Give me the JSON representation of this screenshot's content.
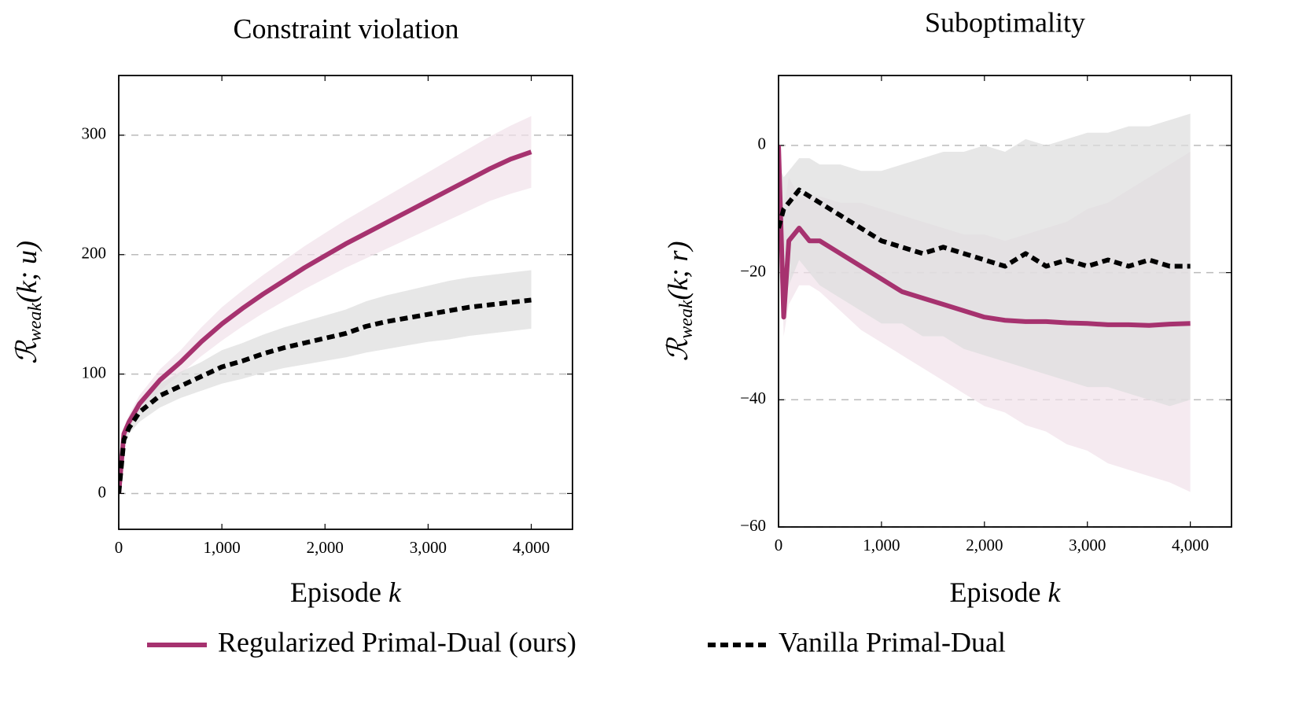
{
  "chart_data": [
    {
      "type": "line",
      "title": "Constraint violation",
      "xlabel": [
        "Episode",
        "k"
      ],
      "ylabel": [
        "ℛ",
        "weak",
        "(k; u)"
      ],
      "x": [
        0,
        50,
        100,
        200,
        300,
        400,
        600,
        800,
        1000,
        1200,
        1400,
        1600,
        1800,
        2000,
        2200,
        2400,
        2600,
        2800,
        3000,
        3200,
        3400,
        3600,
        3800,
        4000
      ],
      "xlim": [
        0,
        4400
      ],
      "ylim": [
        -30,
        350
      ],
      "xticks": [
        0,
        {
          "value": 1000,
          "label": "1,000"
        },
        {
          "value": 2000,
          "label": "2,000"
        },
        {
          "value": 3000,
          "label": "3,000"
        },
        {
          "value": 4000,
          "label": "4,000"
        }
      ],
      "yticks": [
        0,
        100,
        200,
        300
      ],
      "grid": true,
      "series": [
        {
          "name": "Regularized Primal-Dual (ours)",
          "color": "#a6326f",
          "band_color": "#f1e1ea",
          "style": "solid",
          "values": [
            0,
            50,
            60,
            75,
            85,
            95,
            110,
            127,
            142,
            155,
            167,
            178,
            189,
            199,
            209,
            218,
            227,
            236,
            245,
            254,
            263,
            272,
            280,
            286
          ],
          "lower": [
            0,
            45,
            54,
            68,
            77,
            86,
            100,
            115,
            128,
            140,
            151,
            161,
            171,
            180,
            189,
            197,
            205,
            213,
            221,
            229,
            237,
            245,
            251,
            256
          ],
          "upper": [
            0,
            55,
            66,
            82,
            93,
            104,
            120,
            139,
            156,
            170,
            183,
            195,
            207,
            218,
            229,
            239,
            249,
            259,
            269,
            279,
            289,
            299,
            308,
            316
          ]
        },
        {
          "name": "Vanilla Primal-Dual",
          "color": "#000000",
          "band_color": "#dddddd",
          "style": "dashed",
          "values": [
            0,
            45,
            55,
            68,
            75,
            82,
            90,
            98,
            106,
            111,
            117,
            122,
            126,
            130,
            134,
            140,
            144,
            147,
            150,
            153,
            156,
            158,
            160,
            162
          ],
          "lower": [
            0,
            40,
            50,
            60,
            66,
            72,
            80,
            86,
            92,
            96,
            101,
            105,
            108,
            111,
            114,
            118,
            121,
            124,
            127,
            129,
            132,
            134,
            136,
            138
          ],
          "upper": [
            0,
            50,
            62,
            76,
            84,
            92,
            102,
            110,
            120,
            126,
            133,
            139,
            144,
            149,
            154,
            161,
            166,
            170,
            174,
            178,
            181,
            183,
            185,
            187
          ]
        }
      ]
    },
    {
      "type": "line",
      "title": "Suboptimality",
      "xlabel": [
        "Episode",
        "k"
      ],
      "ylabel": [
        "ℛ",
        "weak",
        "(k; r)"
      ],
      "x": [
        0,
        50,
        100,
        200,
        300,
        400,
        600,
        800,
        1000,
        1200,
        1400,
        1600,
        1800,
        2000,
        2200,
        2400,
        2600,
        2800,
        3000,
        3200,
        3400,
        3600,
        3800,
        4000
      ],
      "xlim": [
        0,
        4400
      ],
      "ylim": [
        -60,
        11
      ],
      "xticks": [
        0,
        {
          "value": 1000,
          "label": "1,000"
        },
        {
          "value": 2000,
          "label": "2,000"
        },
        {
          "value": 3000,
          "label": "3,000"
        },
        {
          "value": 4000,
          "label": "4,000"
        }
      ],
      "yticks": [
        {
          "value": -60,
          "label": "−60"
        },
        {
          "value": -40,
          "label": "−40"
        },
        {
          "value": -20,
          "label": "−20"
        },
        0
      ],
      "grid": true,
      "series": [
        {
          "color": "#a6326f",
          "band_color": "#f1e1ea",
          "style": "solid",
          "values": [
            0,
            -27,
            -15,
            -13,
            -15,
            -15,
            -17,
            -19,
            -21,
            -23,
            -24,
            -25,
            -26,
            -27,
            -27.5,
            -27.7,
            -27.7,
            -27.9,
            -28,
            -28.2,
            -28.2,
            -28.3,
            -28.1,
            -28
          ],
          "lower": [
            0,
            -30,
            -25,
            -22,
            -22,
            -23,
            -26,
            -29,
            -31,
            -33,
            -35,
            -37,
            -39,
            -41,
            -42,
            -44,
            -45,
            -47,
            -48,
            -50,
            -51,
            -52,
            -53,
            -54.5
          ],
          "upper": [
            0,
            -10,
            -5,
            -8,
            -8,
            -8,
            -9,
            -9,
            -10,
            -11,
            -12,
            -13,
            -14,
            -14,
            -15,
            -14,
            -13,
            -12,
            -10,
            -9,
            -7,
            -5,
            -3,
            -1
          ]
        },
        {
          "color": "#000000",
          "band_color": "#dddddd",
          "style": "dashed",
          "values": [
            -13,
            -10,
            -9,
            -7,
            -8,
            -9,
            -11,
            -13,
            -15,
            -16,
            -17,
            -16,
            -17,
            -18,
            -19,
            -17,
            -19,
            -18,
            -19,
            -18,
            -19,
            -18,
            -19,
            -19
          ],
          "lower": [
            -20,
            -25,
            -22,
            -18,
            -20,
            -22,
            -24,
            -26,
            -28,
            -28,
            -30,
            -30,
            -32,
            -33,
            -34,
            -35,
            -36,
            -37,
            -38,
            -38,
            -39,
            -40,
            -41,
            -40
          ],
          "upper": [
            -3,
            -5,
            -4,
            -2,
            -2,
            -3,
            -3,
            -4,
            -4,
            -3,
            -2,
            -1,
            -1,
            0,
            -1,
            1,
            0,
            1,
            2,
            2,
            3,
            3,
            4,
            5
          ]
        }
      ]
    }
  ]
}
